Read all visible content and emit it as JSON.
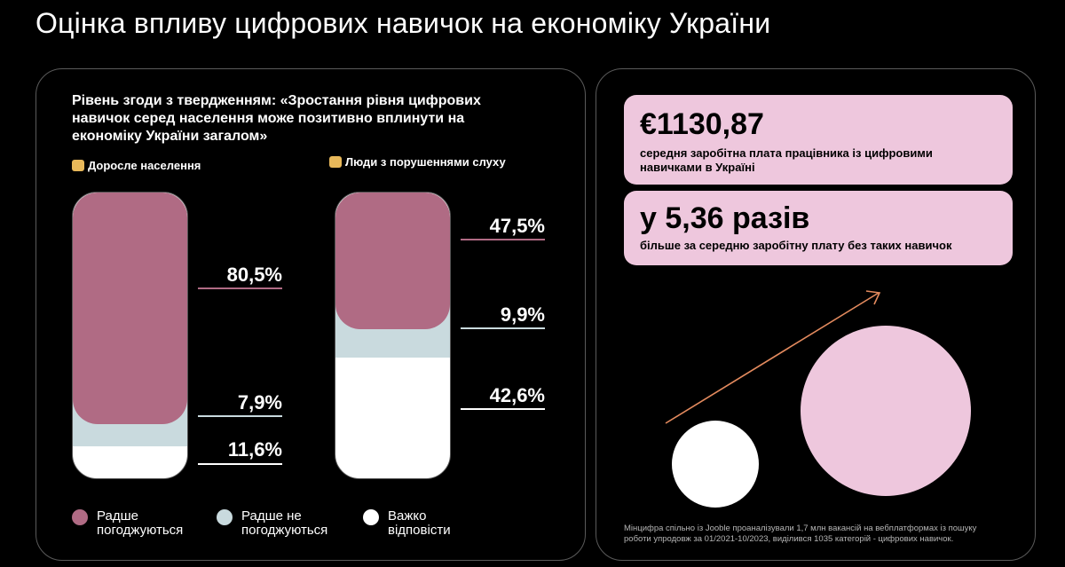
{
  "title": "Оцінка впливу цифрових навичок на економіку України",
  "colors": {
    "agree": "#b06b84",
    "disagree": "#c9dade",
    "hard": "#ffffff",
    "accent": "#e38a5e",
    "card": "#eec7dd"
  },
  "left_panel": {
    "question": "Рівень згоди з твердженням: «Зростання рівня цифрових навичок серед населення може позитивно вплинути на економіку України загалом»",
    "groups": [
      {
        "label": "Доросле населення",
        "icon": "person-emoji-icon"
      },
      {
        "label": "Люди з порушеннями слуху",
        "icon": "hand-emoji-icon"
      }
    ]
  },
  "chart_data": {
    "type": "bar",
    "stacked": true,
    "categories": [
      "Доросле населення",
      "Люди з порушеннями слуху"
    ],
    "series": [
      {
        "name": "Радше погоджуються",
        "values": [
          80.5,
          47.5
        ],
        "labels": [
          "80,5%",
          "47,5%"
        ]
      },
      {
        "name": "Радше не погоджуються",
        "values": [
          7.9,
          9.9
        ],
        "labels": [
          "7,9%",
          "9,9%"
        ]
      },
      {
        "name": "Важко відповісти",
        "values": [
          11.6,
          42.6
        ],
        "labels": [
          "11,6%",
          "42,6%"
        ]
      }
    ],
    "ylim": [
      0,
      100
    ],
    "legend_position": "bottom"
  },
  "legend": [
    {
      "label": "Радше погоджуються"
    },
    {
      "label": "Радше не погоджуються"
    },
    {
      "label": "Важко відповісти"
    }
  ],
  "right_panel": {
    "stat1": {
      "value": "€1130,87",
      "desc": "середня заробітна плата працівника із цифровими навичками в Україні"
    },
    "stat2": {
      "value": "у 5,36 разів",
      "desc": "більше за середню заробітну плату без таких навичок"
    },
    "footnote": "Мінцифра спільно із Jooble проаналізували 1,7 млн вакансій на вебплатформах із пошуку роботи упродовж за 01/2021-10/2023, виділився 1035 категорій - цифрових навичок."
  }
}
